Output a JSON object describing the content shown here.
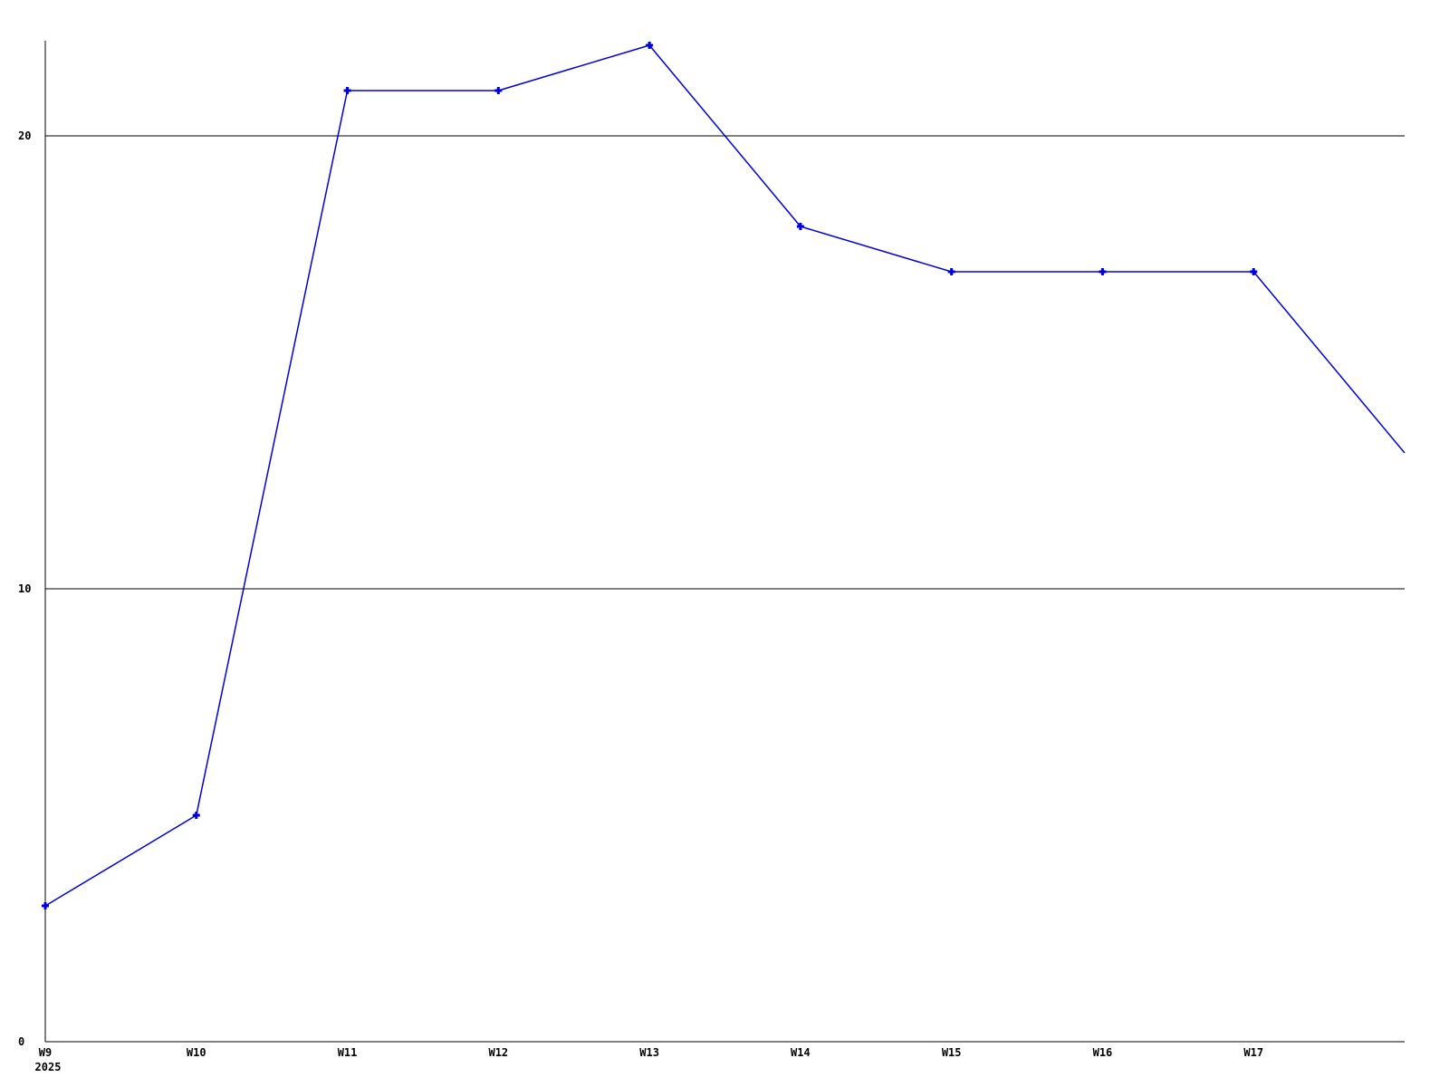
{
  "background": "#ffffff",
  "chart_data": {
    "type": "line",
    "title": "",
    "xlabel": "",
    "ylabel": "",
    "x_labels": [
      "W9",
      "W10",
      "W11",
      "W12",
      "W13",
      "W14",
      "W15",
      "W16",
      "W17"
    ],
    "x_sublabel": "2025",
    "x_sublabel_under": "W9",
    "values": [
      3,
      5,
      21,
      21,
      22,
      18,
      17,
      17,
      17,
      13
    ],
    "note": "10th point is an unmarked, unlabeled trailing endpoint after W17",
    "markers_on_first_n_points": 9,
    "y_ticks": [
      0,
      10,
      20
    ],
    "ylim": [
      0,
      22.1
    ],
    "grid": true,
    "gridline_values": [
      10,
      20
    ],
    "legend": "none",
    "line_color": "#0000dd",
    "axis_color": "#000000",
    "text_color": "#000000"
  }
}
